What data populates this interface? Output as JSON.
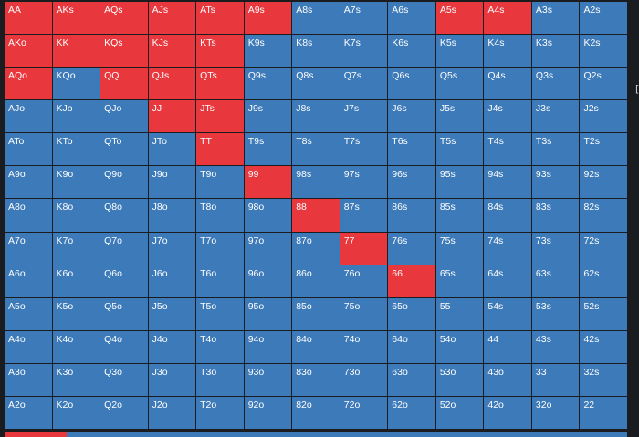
{
  "colors": {
    "selected": "#e8373d",
    "unselected": "#3d7ab9",
    "background": "#1b1c1f"
  },
  "grid": {
    "rows": [
      [
        "AA",
        "AKs",
        "AQs",
        "AJs",
        "ATs",
        "A9s",
        "A8s",
        "A7s",
        "A6s",
        "A5s",
        "A4s",
        "A3s",
        "A2s"
      ],
      [
        "AKo",
        "KK",
        "KQs",
        "KJs",
        "KTs",
        "K9s",
        "K8s",
        "K7s",
        "K6s",
        "K5s",
        "K4s",
        "K3s",
        "K2s"
      ],
      [
        "AQo",
        "KQo",
        "QQ",
        "QJs",
        "QTs",
        "Q9s",
        "Q8s",
        "Q7s",
        "Q6s",
        "Q5s",
        "Q4s",
        "Q3s",
        "Q2s"
      ],
      [
        "AJo",
        "KJo",
        "QJo",
        "JJ",
        "JTs",
        "J9s",
        "J8s",
        "J7s",
        "J6s",
        "J5s",
        "J4s",
        "J3s",
        "J2s"
      ],
      [
        "ATo",
        "KTo",
        "QTo",
        "JTo",
        "TT",
        "T9s",
        "T8s",
        "T7s",
        "T6s",
        "T5s",
        "T4s",
        "T3s",
        "T2s"
      ],
      [
        "A9o",
        "K9o",
        "Q9o",
        "J9o",
        "T9o",
        "99",
        "98s",
        "97s",
        "96s",
        "95s",
        "94s",
        "93s",
        "92s"
      ],
      [
        "A8o",
        "K8o",
        "Q8o",
        "J8o",
        "T8o",
        "98o",
        "88",
        "87s",
        "86s",
        "85s",
        "84s",
        "83s",
        "82s"
      ],
      [
        "A7o",
        "K7o",
        "Q7o",
        "J7o",
        "T7o",
        "97o",
        "87o",
        "77",
        "76s",
        "75s",
        "74s",
        "73s",
        "72s"
      ],
      [
        "A6o",
        "K6o",
        "Q6o",
        "J6o",
        "T6o",
        "96o",
        "86o",
        "76o",
        "66",
        "65s",
        "64s",
        "63s",
        "62s"
      ],
      [
        "A5o",
        "K5o",
        "Q5o",
        "J5o",
        "T5o",
        "95o",
        "85o",
        "75o",
        "65o",
        "55",
        "54s",
        "53s",
        "52s"
      ],
      [
        "A4o",
        "K4o",
        "Q4o",
        "J4o",
        "T4o",
        "94o",
        "84o",
        "74o",
        "64o",
        "54o",
        "44",
        "43s",
        "42s"
      ],
      [
        "A3o",
        "K3o",
        "Q3o",
        "J3o",
        "T3o",
        "93o",
        "83o",
        "73o",
        "63o",
        "53o",
        "43o",
        "33",
        "32s"
      ],
      [
        "A2o",
        "K2o",
        "Q2o",
        "J2o",
        "T2o",
        "92o",
        "82o",
        "72o",
        "62o",
        "52o",
        "42o",
        "32o",
        "22"
      ]
    ],
    "selected": [
      "AA",
      "AKs",
      "AQs",
      "AJs",
      "ATs",
      "A9s",
      "A5s",
      "A4s",
      "AKo",
      "KK",
      "KQs",
      "KJs",
      "KTs",
      "AQo",
      "QQ",
      "QJs",
      "QTs",
      "JJ",
      "JTs",
      "TT",
      "99",
      "88",
      "77",
      "66"
    ]
  },
  "range_progress": 0.1,
  "edge_glyph": "["
}
